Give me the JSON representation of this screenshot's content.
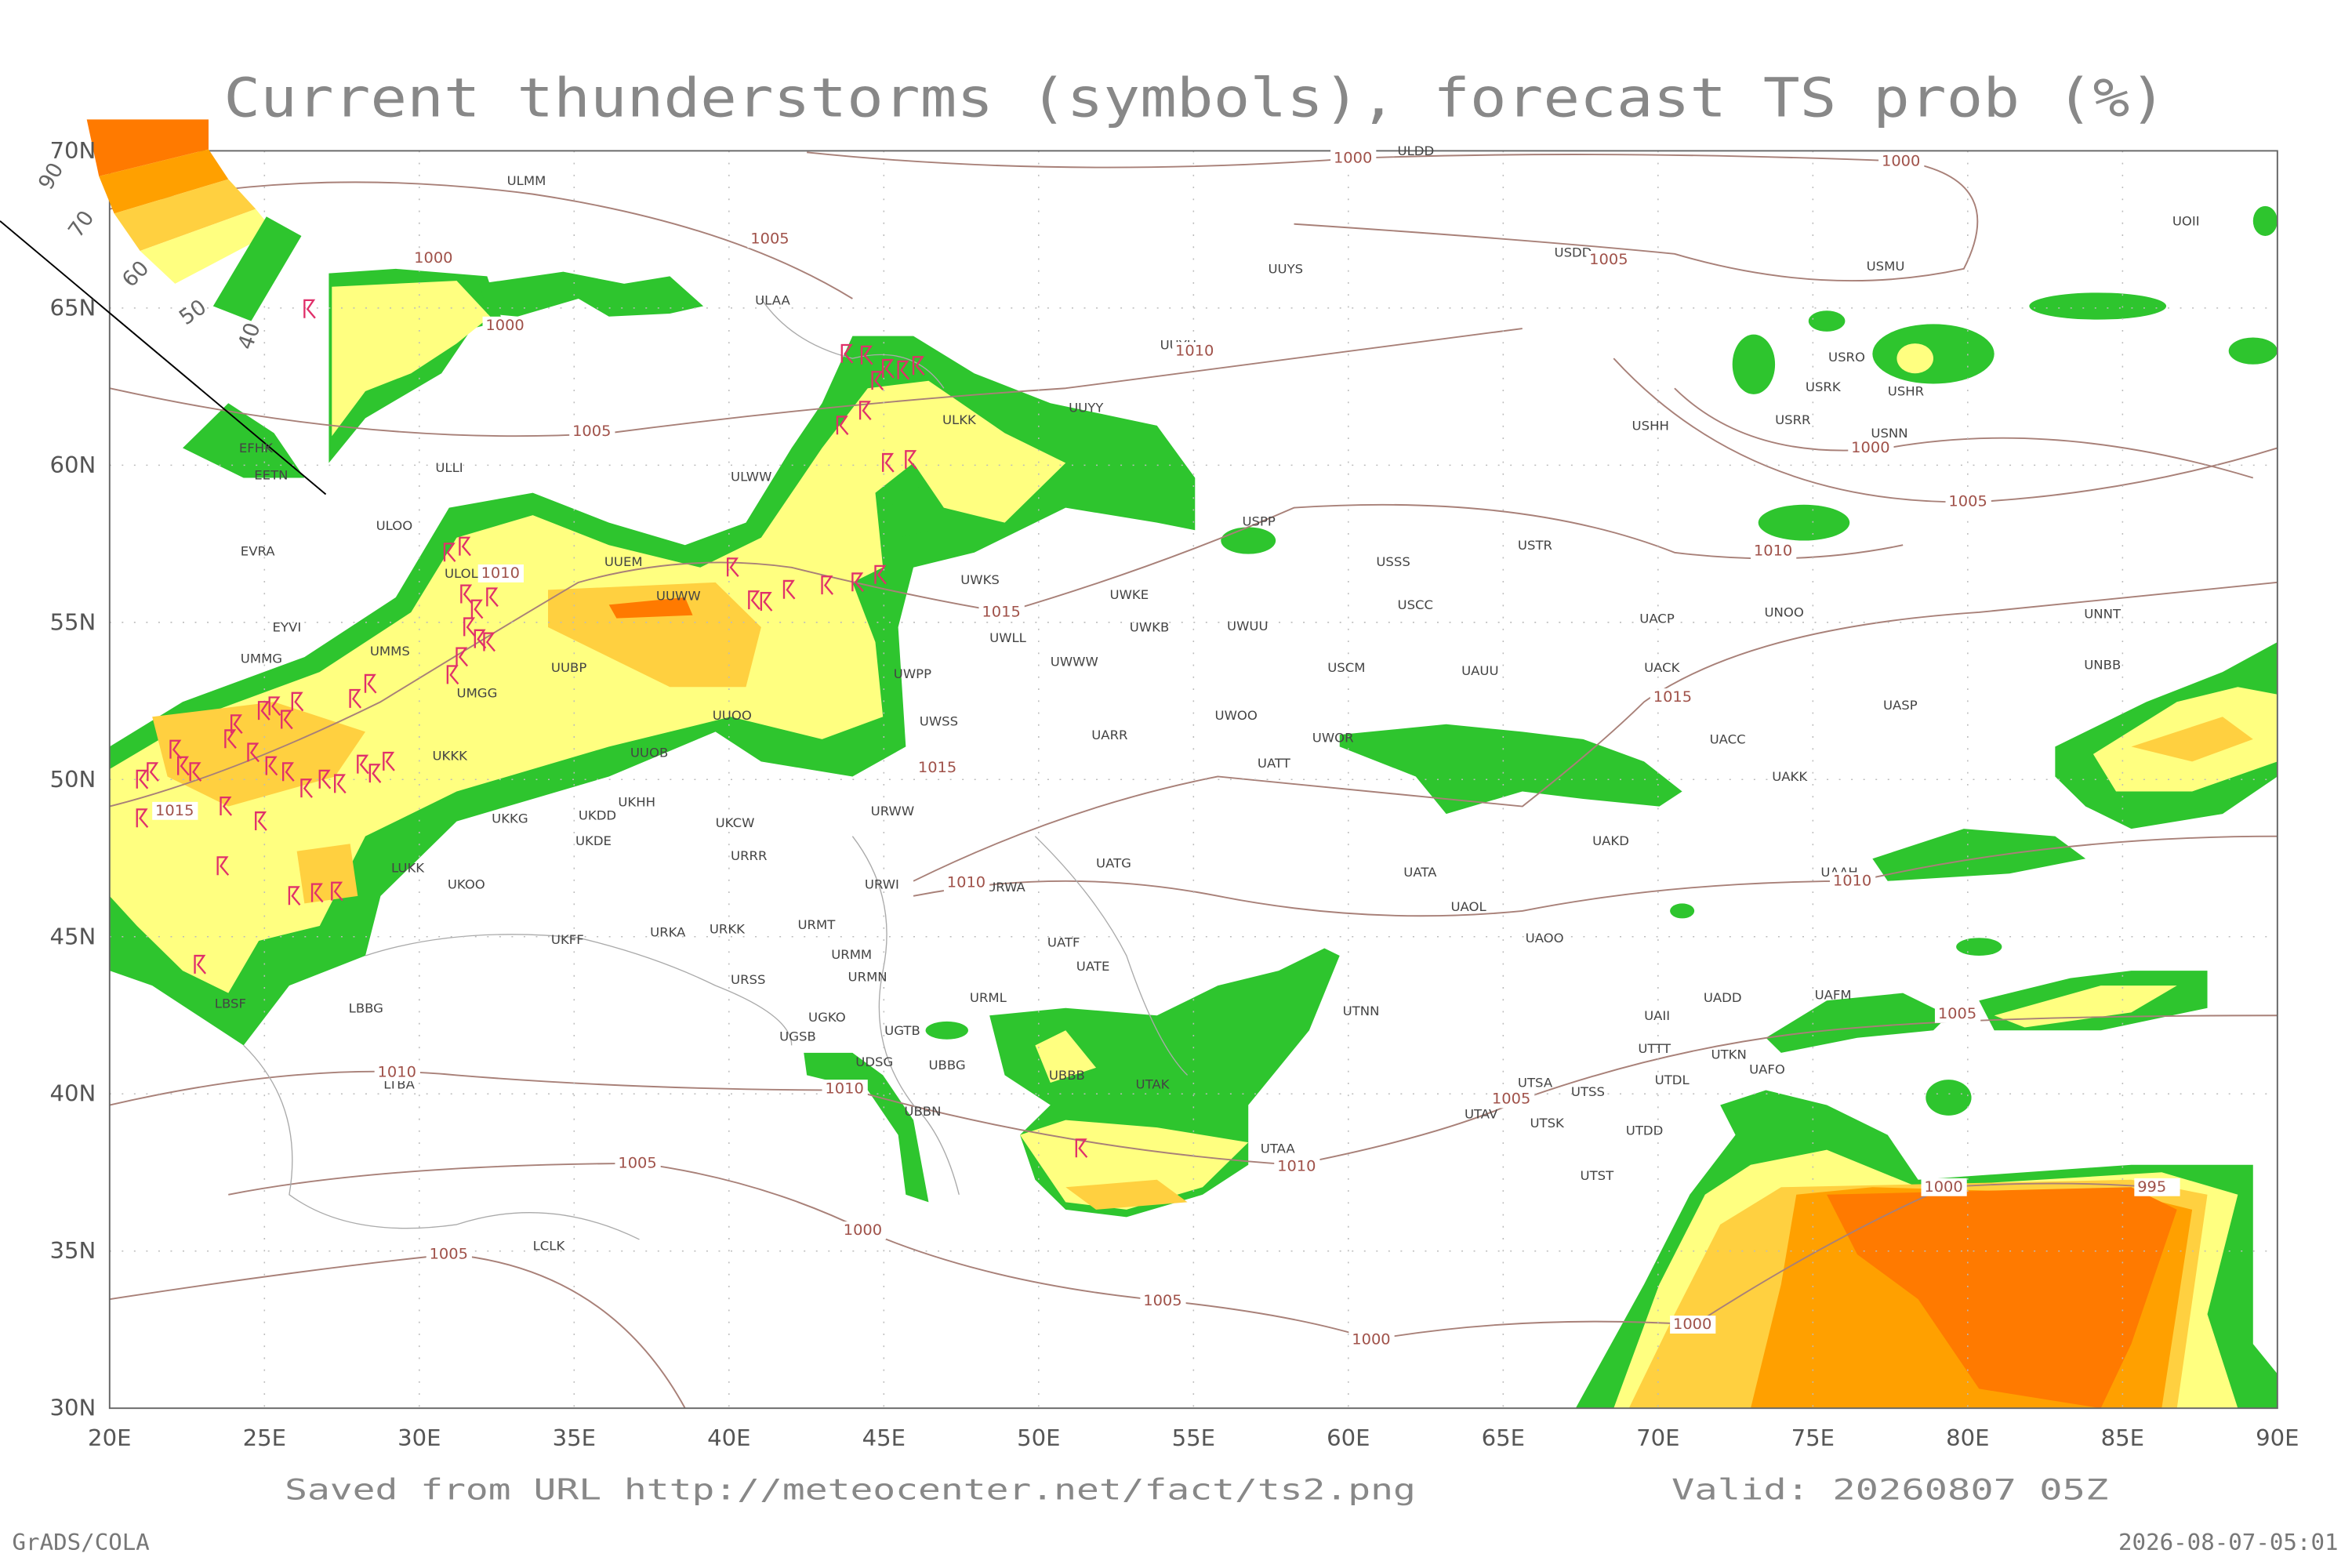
{
  "title": "Current thunderstorms (symbols), forecast TS prob (%)",
  "latitude_labels": [
    "70N",
    "65N",
    "60N",
    "55N",
    "50N",
    "45N",
    "40N",
    "35N",
    "30N"
  ],
  "longitude_labels": [
    "20E",
    "25E",
    "30E",
    "35E",
    "40E",
    "45E",
    "50E",
    "55E",
    "60E",
    "65E",
    "70E",
    "75E",
    "80E",
    "85E",
    "90E"
  ],
  "legend": {
    "labels": [
      90,
      70,
      60,
      50,
      40
    ]
  },
  "stations": [
    "ULMM",
    "ULDD",
    "UUYS",
    "USDD",
    "USMU",
    "UOII",
    "ULAA",
    "UUYH",
    "USRO",
    "USRK",
    "USHR",
    "USRR",
    "USNN",
    "ULKK",
    "UUYY",
    "USHH",
    "EFHK",
    "EETN",
    "ULLI",
    "ULWW",
    "ULOO",
    "USPP",
    "EVRA",
    "UUEM",
    "USSS",
    "USTR",
    "ULOL",
    "UUWW",
    "UWKS",
    "UWKE",
    "USCC",
    "UNOO",
    "UNNT",
    "EYVI",
    "UWKB",
    "UWUU",
    "UACP",
    "UWLL",
    "UMMG",
    "UMMS",
    "UUBP",
    "UWWW",
    "USCM",
    "UAUU",
    "UACK",
    "UNBB",
    "UWPP",
    "UMGG",
    "UUOO",
    "UWSS",
    "UARR",
    "UWOO",
    "UASP",
    "UWOR",
    "UACC",
    "UKKK",
    "UUOB",
    "UATT",
    "UAKK",
    "UKHH",
    "UKKG",
    "UKDD",
    "UKCW",
    "URWW",
    "UKDE",
    "URRR",
    "UAKD",
    "UATG",
    "UATA",
    "UAAH",
    "LUKK",
    "UKOO",
    "URWI",
    "URWA",
    "UAOL",
    "UKFF",
    "URKA",
    "URKK",
    "URMT",
    "UATF",
    "UAOO",
    "URMM",
    "URMN",
    "UATE",
    "URSS",
    "UADD",
    "UAFM",
    "URML",
    "UTNN",
    "LBBG",
    "LBSF",
    "UGKO",
    "UAII",
    "UGTB",
    "UTTT",
    "UTKN",
    "UAFO",
    "UGSB",
    "UDSG",
    "UBBG",
    "UBBB",
    "UTAK",
    "UTSA",
    "UTDL",
    "LTBA",
    "UTSS",
    "UBBN",
    "UTAV",
    "UTSK",
    "UTDD",
    "UTAA",
    "UTST",
    "LCLK"
  ],
  "isobar_labels": [
    "1000",
    "1000",
    "1005",
    "1005",
    "1000",
    "1000",
    "1010",
    "1005",
    "1000",
    "1005",
    "1010",
    "1010",
    "1015",
    "1015",
    "1015",
    "1015",
    "1010",
    "1010",
    "1005",
    "1010",
    "1010",
    "1005",
    "1010",
    "1005",
    "1000",
    "995",
    "1000",
    "1005",
    "1005",
    "1000",
    "1000"
  ],
  "footer": {
    "source": "Saved from URL http://meteocenter.net/fact/ts2.png",
    "valid": "Valid: 20260807 05Z",
    "software": "GrADS/COLA",
    "timestamp": "2026-08-07-05:01"
  }
}
